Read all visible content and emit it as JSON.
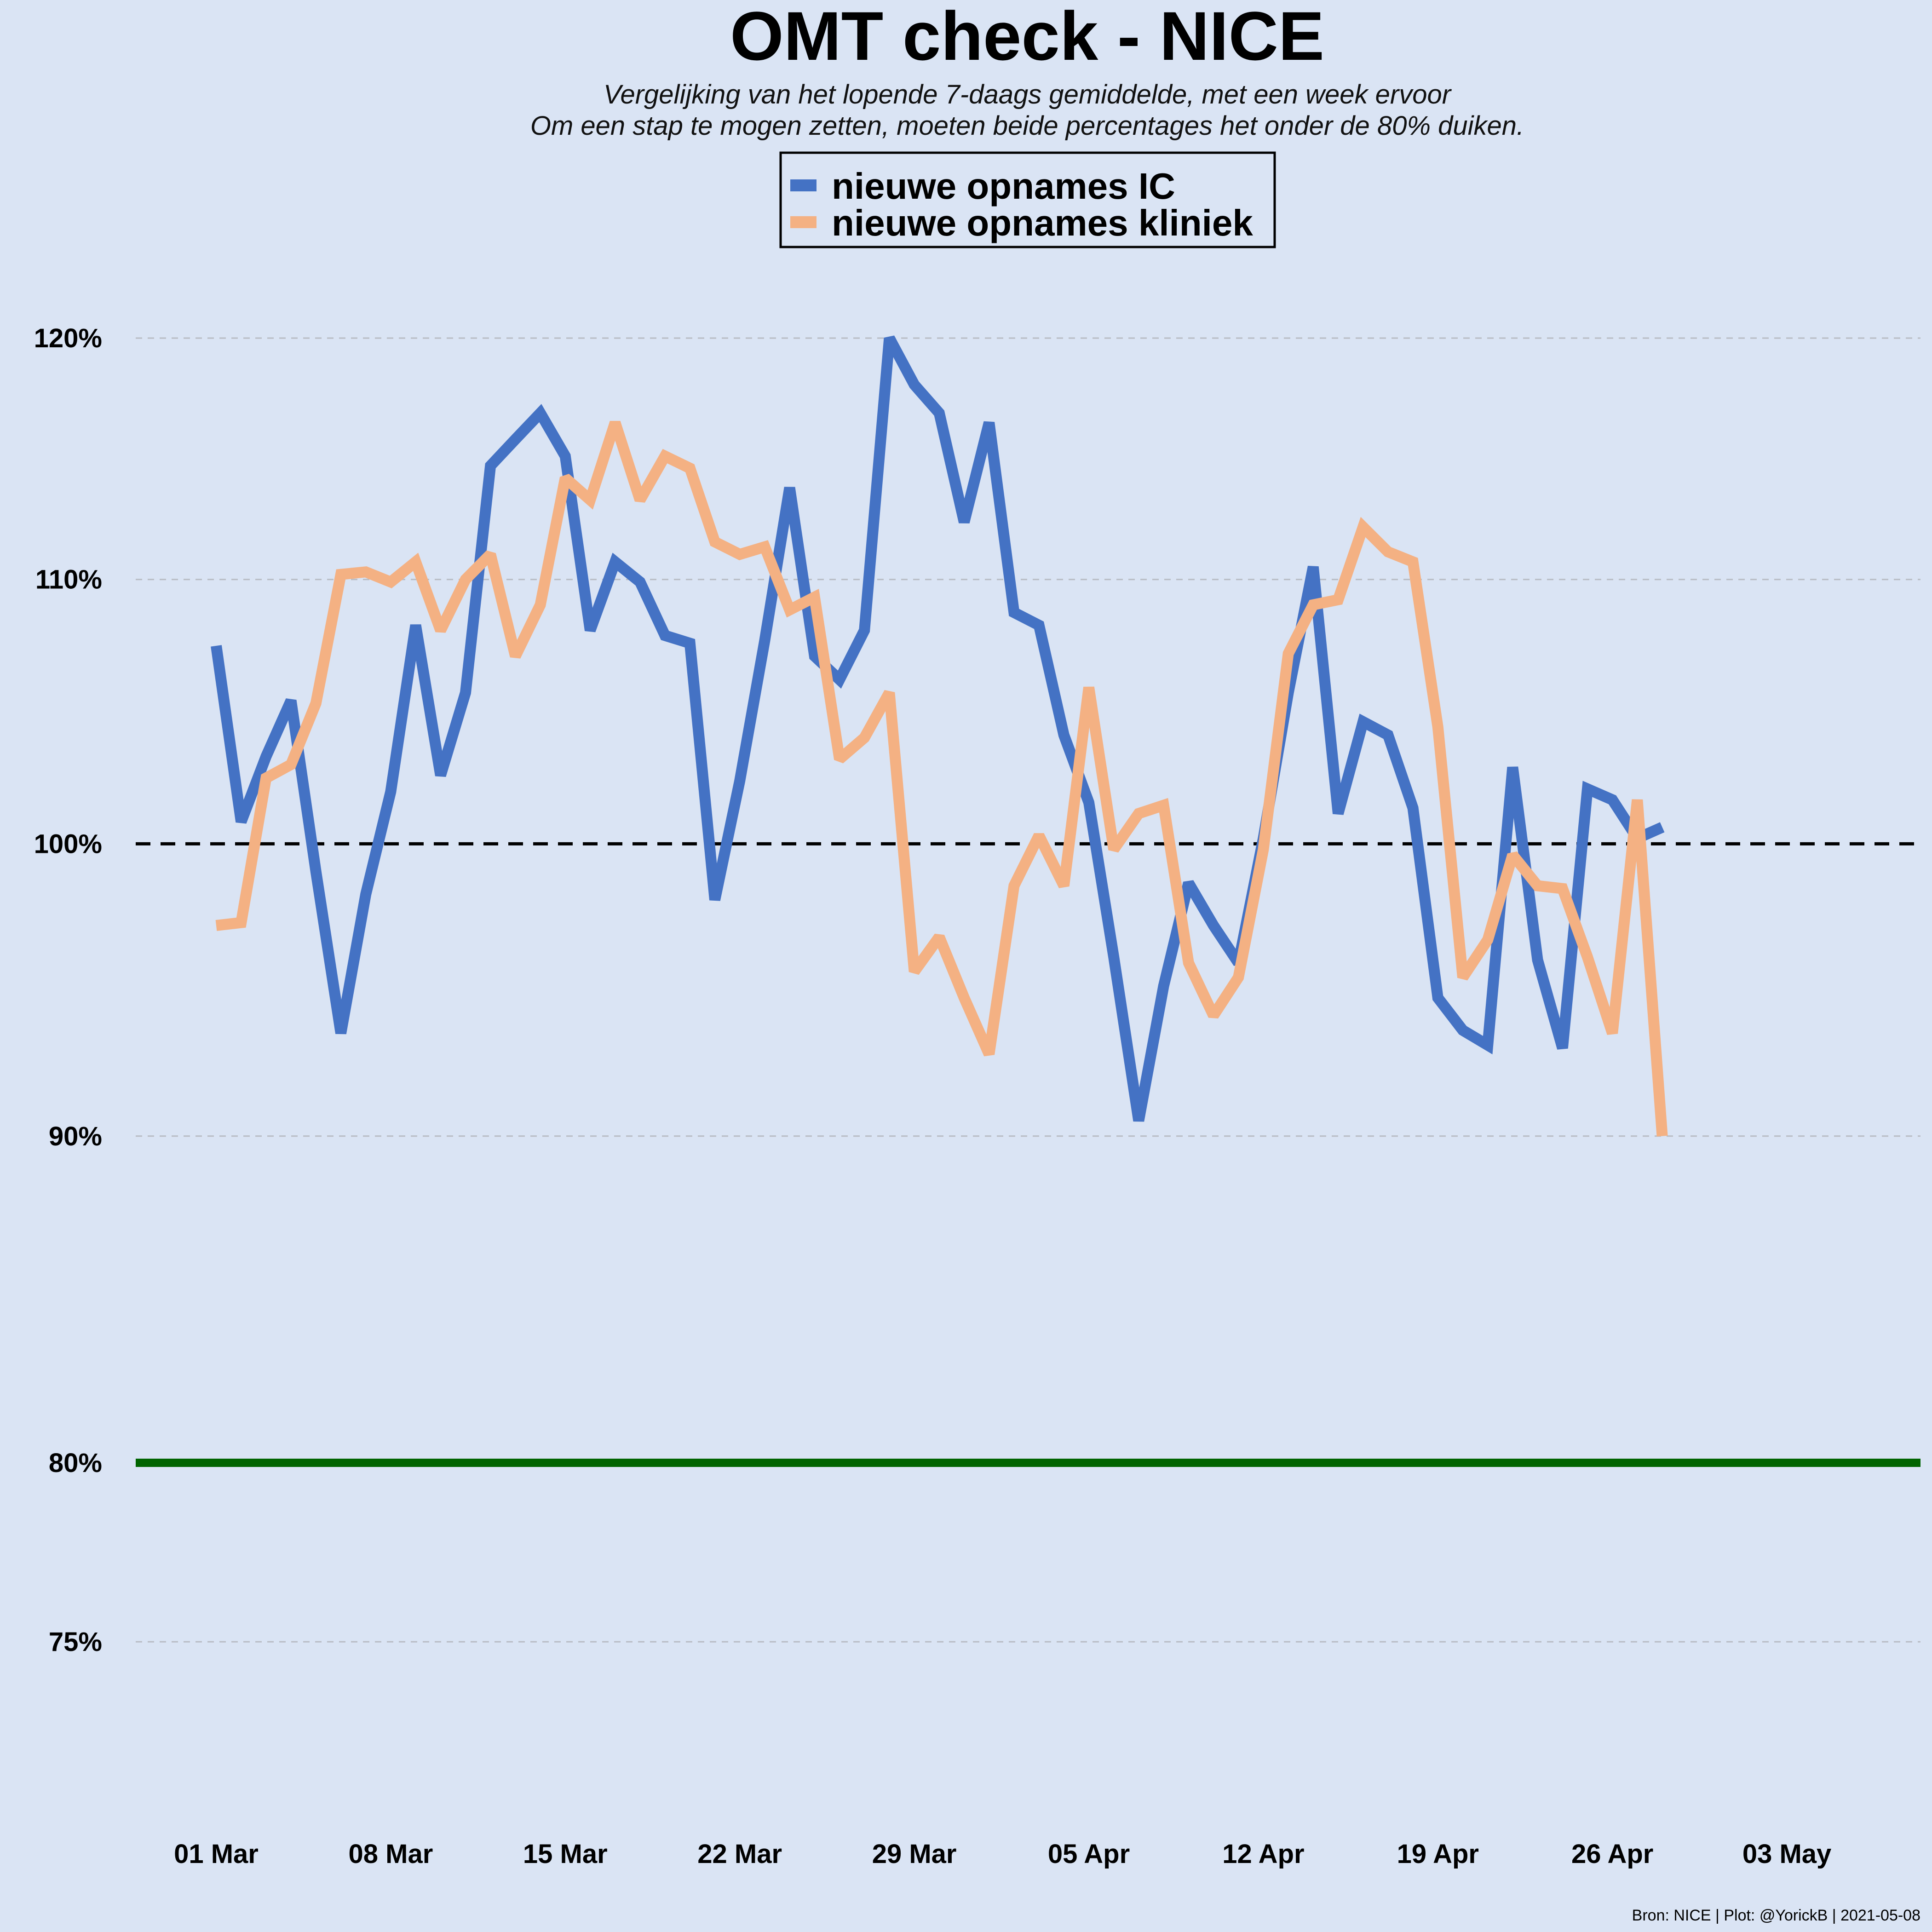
{
  "chart_data": {
    "type": "line",
    "title": "OMT check - NICE",
    "subtitle_lines": [
      "Vergelijking van het lopende 7-daags gemiddelde, met een week ervoor",
      "Om een stap te mogen zetten, moeten beide percentages het onder de 80% duiken."
    ],
    "caption": "Bron: NICE | Plot: @YorickB |  2021-05-08",
    "legend_position": "top-center",
    "x_start_date": "2021-02-27",
    "x_ticks": [
      "01 Mar",
      "08 Mar",
      "15 Mar",
      "22 Mar",
      "29 Mar",
      "05 Apr",
      "12 Apr",
      "19 Apr",
      "26 Apr",
      "03 May"
    ],
    "x_range": [
      "2021-02-27",
      "2021-05-08"
    ],
    "y_ticks": [
      {
        "value": 120,
        "label": "120%"
      },
      {
        "value": 110,
        "label": "110%"
      },
      {
        "value": 100,
        "label": "100%"
      },
      {
        "value": 90,
        "label": "90%"
      },
      {
        "value": 80,
        "label": "80%"
      },
      {
        "value": 75,
        "label": "75%"
      }
    ],
    "ylim": [
      70,
      123
    ],
    "grid": "horizontal-dashed",
    "reference_lines": [
      {
        "value": 100,
        "color": "#000000",
        "style": "dashed"
      },
      {
        "value": 80,
        "color": "#006400",
        "style": "solid"
      }
    ],
    "series": [
      {
        "name": "nieuwe opnames IC",
        "color": "#4472c4",
        "x_start": "2021-03-01",
        "values": [
          107.4,
          100.8,
          103.2,
          105.3,
          99.0,
          93.4,
          98.2,
          101.9,
          108.2,
          102.5,
          105.6,
          114.6,
          115.7,
          116.8,
          115.0,
          108.0,
          110.7,
          109.9,
          107.8,
          107.5,
          98.0,
          102.3,
          107.6,
          113.7,
          107.0,
          106.1,
          108.0,
          120.0,
          118.0,
          116.8,
          112.3,
          116.4,
          108.7,
          108.2,
          104.0,
          101.5,
          96.0,
          90.5,
          95.0,
          98.6,
          97.1,
          95.8,
          100.2,
          105.6,
          110.5,
          101.1,
          104.5,
          104.0,
          101.3,
          94.6,
          93.5,
          93.0,
          102.8,
          95.9,
          92.9,
          102.0,
          101.6,
          100.2,
          100.6
        ]
      },
      {
        "name": "nieuwe opnames kliniek",
        "color": "#f4b183",
        "x_start": "2021-03-01",
        "values": [
          97.1,
          97.2,
          102.4,
          102.9,
          105.2,
          110.2,
          110.3,
          109.9,
          110.7,
          108.0,
          110.0,
          111.0,
          107.0,
          109.0,
          114.1,
          113.2,
          116.4,
          113.2,
          115.0,
          114.5,
          111.5,
          111.0,
          111.3,
          108.8,
          109.3,
          103.1,
          103.9,
          105.6,
          95.5,
          96.7,
          94.6,
          92.7,
          98.5,
          100.3,
          98.5,
          105.8,
          99.8,
          101.1,
          101.4,
          95.8,
          94.0,
          95.3,
          99.8,
          107.1,
          109.0,
          109.2,
          112.1,
          111.1,
          110.7,
          104.3,
          95.3,
          96.6,
          99.6,
          98.5,
          98.4,
          96.0,
          93.4,
          101.6,
          90.0
        ]
      }
    ]
  }
}
